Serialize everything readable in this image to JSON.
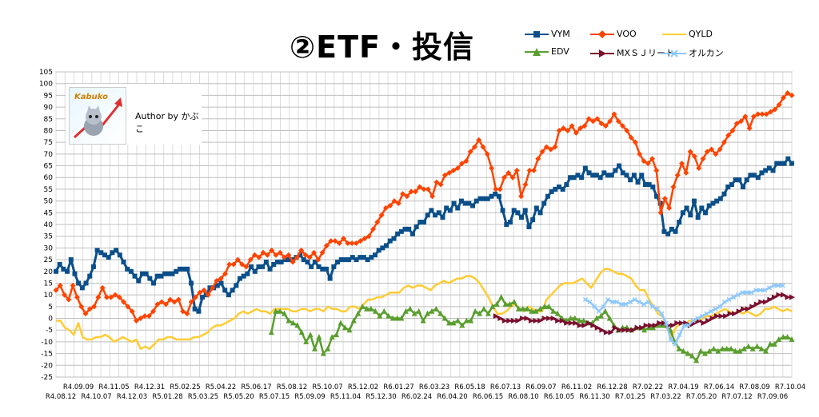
{
  "title": "②ETF・投信",
  "author": "Author by かぶこ",
  "logo_text": "Kabuko",
  "legend": [
    {
      "name": "VYM",
      "color": "#0b4f8a",
      "marker": "square"
    },
    {
      "name": "VOO",
      "color": "#ff4400",
      "marker": "diamond"
    },
    {
      "name": "QYLD",
      "color": "#ffcc33",
      "marker": "none"
    },
    {
      "name": "EDV",
      "color": "#5a9e2f",
      "marker": "triangle"
    },
    {
      "name": "MXＳＪリート",
      "color": "#7a0f2e",
      "marker": "arrow"
    },
    {
      "name": "オルカン",
      "color": "#8cc8ff",
      "marker": "x"
    }
  ],
  "chart_data": {
    "type": "line",
    "ylim": [
      -25,
      105
    ],
    "yticks": [
      105,
      100,
      95,
      90,
      85,
      80,
      75,
      70,
      65,
      60,
      55,
      50,
      45,
      40,
      35,
      30,
      25,
      20,
      15,
      10,
      5,
      0,
      -5,
      -10,
      -15,
      -20,
      -25
    ],
    "grid": true,
    "legend_position": "top-right",
    "x_labels_top": [
      "R4.09.09",
      "R4.11.05",
      "R4.12.31",
      "R5.02.25",
      "R5.04.22",
      "R5.06.17",
      "R5.08.12",
      "R5.10.07",
      "R5.12.02",
      "R6.01.27",
      "R6.03.23",
      "R6.05.18",
      "R6.07.13",
      "R6.09.07",
      "R6.11.02",
      "R6.12.28",
      "R7.02.22",
      "R7.04.19",
      "R7.06.14",
      "R7.08.09",
      "R7.10.04"
    ],
    "x_labels_bottom": [
      "R4.08.12",
      "R4.10.07",
      "R4.12.03",
      "R5.01.28",
      "R5.03.25",
      "R5.05.20",
      "R5.07.15",
      "R5.09.09",
      "R5.11.04",
      "R5.12.30",
      "R6.02.24",
      "R6.04.20",
      "R6.06.15",
      "R6.08.10",
      "R6.10.05",
      "R6.11.30",
      "R7.01.25",
      "R7.03.22",
      "R7.05.20",
      "R7.07.12",
      "R7.09.06"
    ],
    "n_points": 165,
    "series": [
      {
        "name": "VYM",
        "start": 0,
        "values": [
          20,
          23,
          21,
          20,
          25,
          19,
          15,
          13,
          15,
          18,
          22,
          29,
          28,
          27,
          26,
          28,
          29,
          27,
          24,
          21,
          20,
          18,
          16,
          19,
          19,
          17,
          15,
          18,
          18,
          19,
          19,
          19,
          20,
          21,
          21,
          21,
          15,
          4,
          3,
          9,
          10,
          13,
          13,
          14,
          15,
          12,
          10,
          12,
          14,
          17,
          18,
          19,
          22,
          20,
          22,
          22,
          24,
          21,
          23,
          24,
          24,
          25,
          25,
          25,
          26,
          27,
          25,
          24,
          22,
          24,
          22,
          21,
          21,
          17,
          22,
          24,
          25,
          25,
          25,
          26,
          25,
          26,
          26,
          25,
          26,
          27,
          29,
          30,
          31,
          33,
          34,
          36,
          37,
          38,
          38,
          36,
          39,
          41,
          41,
          44,
          46,
          44,
          45,
          43,
          47,
          46,
          49,
          47,
          50,
          49,
          49,
          48,
          50,
          51,
          51,
          51,
          52,
          53,
          52,
          46,
          40,
          41,
          46,
          45,
          43,
          46,
          39,
          42,
          47,
          45,
          49,
          52,
          54,
          55,
          56,
          55,
          57,
          60,
          60,
          61,
          60,
          64,
          62,
          61,
          61,
          60,
          62,
          61,
          61,
          63,
          65,
          62,
          61,
          59,
          61,
          58,
          61,
          57,
          57,
          56,
          52,
          49,
          37,
          36,
          38
        ],
        "extra_tail": [
          37,
          41,
          45,
          47,
          44,
          50,
          43,
          47,
          45,
          48,
          49,
          50,
          51,
          53,
          56,
          57,
          59,
          59,
          56,
          59,
          61,
          61,
          60,
          62,
          63,
          64,
          63,
          66,
          66,
          66,
          68,
          66
        ]
      },
      {
        "name": "VOO",
        "start": 0,
        "values": [
          12,
          14,
          10,
          8,
          14,
          9,
          5,
          2,
          4,
          5,
          9,
          13,
          9,
          9,
          10,
          9,
          7,
          5,
          3,
          -1,
          0,
          1,
          1,
          3,
          6,
          7,
          6,
          8,
          7,
          8,
          3,
          2,
          7,
          9,
          11,
          12,
          10,
          13,
          16,
          17,
          19,
          23,
          23,
          25,
          23,
          22,
          25,
          27,
          26,
          28,
          27,
          29,
          27,
          28,
          26,
          27,
          24,
          26,
          29,
          27,
          26,
          28,
          25,
          28,
          31,
          33,
          33,
          32,
          34,
          32,
          32,
          32,
          33,
          34,
          35,
          38,
          41,
          44,
          47,
          48,
          50,
          49,
          53,
          52,
          54,
          54,
          56,
          55,
          55,
          52,
          58,
          57,
          61,
          62,
          63,
          64,
          66,
          67,
          71,
          73,
          76,
          73,
          70,
          64,
          55,
          55,
          60,
          62,
          60,
          63,
          52,
          57,
          63,
          63,
          68,
          71,
          73,
          72,
          73,
          80,
          81,
          80,
          82,
          79,
          81,
          82,
          85,
          84,
          85,
          83,
          82,
          84,
          87,
          84,
          82,
          80,
          77,
          75,
          70,
          67,
          66,
          68,
          63,
          45,
          51,
          47,
          56,
          61,
          66,
          62,
          71,
          69,
          64,
          68,
          71,
          72,
          70,
          72,
          75,
          78,
          80,
          83,
          84,
          86,
          81,
          86,
          87,
          87,
          87,
          88,
          89,
          91,
          94,
          96,
          95
        ]
      },
      {
        "name": "QYLD",
        "start": 0,
        "values": [
          -1,
          -1,
          -4,
          -5,
          -7,
          -2,
          -8,
          -9,
          -9,
          -8,
          -8,
          -7,
          -8,
          -10,
          -9,
          -8,
          -9,
          -10,
          -9,
          -13,
          -12,
          -13,
          -11,
          -9,
          -9,
          -8,
          -8,
          -9,
          -9,
          -9,
          -9,
          -8,
          -8,
          -7,
          -6,
          -4,
          -3,
          -3,
          -2,
          -1,
          0,
          2,
          3,
          2,
          3,
          4,
          3,
          3,
          2,
          4,
          4,
          4,
          4,
          3,
          3,
          4,
          4,
          3,
          4,
          4,
          3,
          5,
          4,
          4,
          3,
          3,
          5,
          5,
          4,
          6,
          8,
          8,
          9,
          9,
          10,
          11,
          11,
          11,
          13,
          14,
          13,
          14,
          14,
          13,
          12,
          14,
          15,
          16,
          15,
          16,
          17,
          17,
          18,
          18,
          17,
          15,
          12,
          9,
          5,
          2,
          2,
          3,
          5,
          6,
          4,
          3,
          5,
          4,
          3,
          3,
          8,
          10,
          12,
          14,
          15,
          15,
          15,
          16,
          17,
          15,
          13,
          16,
          19,
          21,
          21,
          20,
          19,
          19,
          18,
          17,
          14,
          12,
          12,
          8,
          5,
          2,
          1,
          -4,
          -8,
          -4,
          -2,
          -3,
          -1,
          -1,
          -1,
          0,
          1,
          1,
          2,
          3,
          4,
          3,
          2,
          3,
          2,
          3,
          2,
          1,
          2,
          4,
          4,
          5,
          4,
          3,
          4,
          3
        ]
      },
      {
        "name": "EDV",
        "start": 48,
        "values": [
          -6,
          3,
          3,
          2,
          -1,
          -2,
          -3,
          -6,
          -10,
          -7,
          -13,
          -8,
          -15,
          -13,
          -8,
          -7,
          -2,
          -4,
          -5,
          -1,
          2,
          5,
          4,
          4,
          3,
          1,
          3,
          1,
          0,
          0,
          0,
          3,
          4,
          2,
          3,
          -1,
          2,
          3,
          4,
          2,
          0,
          -2,
          -2,
          -1,
          -3,
          -1,
          -1,
          3,
          2,
          4,
          2,
          5,
          6,
          9,
          6,
          6,
          7,
          4,
          4,
          4,
          3,
          3,
          4,
          5,
          5,
          3,
          2,
          0,
          -1,
          0,
          0,
          -1,
          -1,
          -2,
          -2,
          0,
          1,
          3,
          0,
          -3,
          -5,
          -4,
          -4,
          -5,
          -4,
          -4,
          -5,
          -4,
          -4,
          -3,
          -3,
          -3,
          -5,
          -10,
          -13,
          -14,
          -15,
          -16,
          -18,
          -14,
          -15,
          -14,
          -13,
          -14,
          -13,
          -13,
          -13,
          -14,
          -14,
          -13,
          -12,
          -13,
          -12,
          -13,
          -14,
          -11,
          -11,
          -9,
          -8,
          -8,
          -9
        ]
      },
      {
        "name": "MXＳＪリート",
        "start": 98,
        "values": [
          1,
          0,
          -1,
          -1,
          -1,
          -1,
          0,
          0,
          -1,
          -1,
          -1,
          0,
          0,
          0,
          -1,
          -1,
          -2,
          -2,
          -2,
          -3,
          -3,
          -2,
          -3,
          -4,
          -5,
          -6,
          -6,
          -4,
          -5,
          -5,
          -5,
          -5,
          -4,
          -4,
          -3,
          -3,
          -3,
          -2,
          -2,
          -3,
          -3,
          -2,
          -2,
          -2,
          -3,
          -2,
          -1,
          -2,
          -1,
          0,
          1,
          1,
          1,
          2,
          2,
          3,
          4,
          4,
          5,
          6,
          7,
          7,
          8,
          9,
          10,
          10,
          9,
          9
        ]
      },
      {
        "name": "オルカン",
        "start": 118,
        "values": [
          8,
          7,
          5,
          3,
          5,
          8,
          7,
          7,
          6,
          6,
          7,
          8,
          7,
          6,
          7,
          5,
          4,
          2,
          -2,
          -9,
          -11,
          -7,
          -3,
          -3,
          -1,
          0,
          1,
          2,
          3,
          4,
          5,
          7,
          8,
          9,
          10,
          11,
          11,
          11,
          12,
          12,
          12,
          13,
          14,
          14,
          14
        ]
      }
    ]
  }
}
